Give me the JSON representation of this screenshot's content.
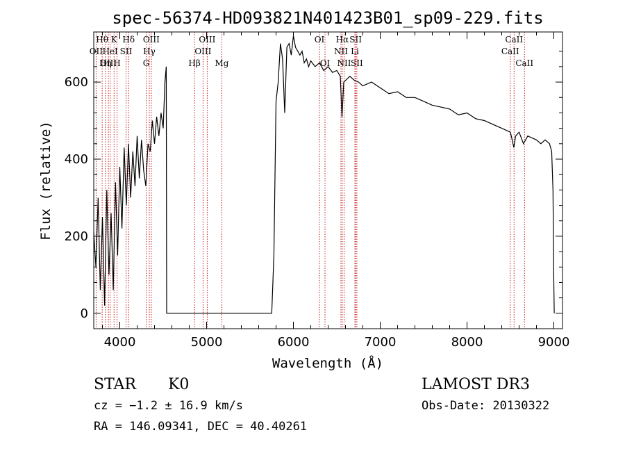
{
  "chart_data": {
    "type": "line",
    "title": "spec-56374-HD093821N401423B01_sp09-229.fits",
    "xlabel": "Wavelength (Å)",
    "ylabel": "Flux (relative)",
    "xlim": [
      3700,
      9100
    ],
    "ylim": [
      -40,
      730
    ],
    "xticks": [
      4000,
      5000,
      6000,
      7000,
      8000,
      9000
    ],
    "yticks": [
      0,
      200,
      400,
      600
    ],
    "grid": false,
    "series": [
      {
        "name": "flux",
        "points": [
          [
            3700,
            210
          ],
          [
            3725,
            120
          ],
          [
            3750,
            300
          ],
          [
            3775,
            60
          ],
          [
            3800,
            250
          ],
          [
            3825,
            20
          ],
          [
            3850,
            320
          ],
          [
            3875,
            100
          ],
          [
            3900,
            260
          ],
          [
            3925,
            60
          ],
          [
            3950,
            340
          ],
          [
            3975,
            150
          ],
          [
            4000,
            380
          ],
          [
            4025,
            220
          ],
          [
            4050,
            430
          ],
          [
            4075,
            280
          ],
          [
            4100,
            440
          ],
          [
            4125,
            300
          ],
          [
            4150,
            420
          ],
          [
            4175,
            330
          ],
          [
            4200,
            460
          ],
          [
            4225,
            350
          ],
          [
            4250,
            450
          ],
          [
            4275,
            370
          ],
          [
            4300,
            330
          ],
          [
            4325,
            440
          ],
          [
            4350,
            420
          ],
          [
            4375,
            500
          ],
          [
            4400,
            440
          ],
          [
            4425,
            510
          ],
          [
            4450,
            460
          ],
          [
            4475,
            520
          ],
          [
            4500,
            480
          ],
          [
            4520,
            600
          ],
          [
            4535,
            640
          ],
          [
            4540,
            0
          ],
          [
            5750,
            0
          ],
          [
            5775,
            150
          ],
          [
            5800,
            550
          ],
          [
            5825,
            600
          ],
          [
            5850,
            700
          ],
          [
            5875,
            660
          ],
          [
            5900,
            520
          ],
          [
            5925,
            690
          ],
          [
            5950,
            700
          ],
          [
            5975,
            670
          ],
          [
            6000,
            720
          ],
          [
            6025,
            690
          ],
          [
            6050,
            680
          ],
          [
            6075,
            670
          ],
          [
            6100,
            680
          ],
          [
            6125,
            650
          ],
          [
            6150,
            660
          ],
          [
            6175,
            640
          ],
          [
            6200,
            655
          ],
          [
            6250,
            640
          ],
          [
            6300,
            650
          ],
          [
            6350,
            630
          ],
          [
            6400,
            640
          ],
          [
            6450,
            625
          ],
          [
            6500,
            630
          ],
          [
            6540,
            615
          ],
          [
            6560,
            510
          ],
          [
            6580,
            600
          ],
          [
            6650,
            615
          ],
          [
            6700,
            605
          ],
          [
            6750,
            600
          ],
          [
            6800,
            590
          ],
          [
            6900,
            600
          ],
          [
            7000,
            585
          ],
          [
            7100,
            570
          ],
          [
            7200,
            575
          ],
          [
            7300,
            560
          ],
          [
            7400,
            560
          ],
          [
            7500,
            550
          ],
          [
            7600,
            540
          ],
          [
            7700,
            535
          ],
          [
            7800,
            530
          ],
          [
            7900,
            515
          ],
          [
            8000,
            520
          ],
          [
            8100,
            505
          ],
          [
            8200,
            500
          ],
          [
            8300,
            490
          ],
          [
            8400,
            480
          ],
          [
            8500,
            470
          ],
          [
            8540,
            430
          ],
          [
            8560,
            460
          ],
          [
            8600,
            470
          ],
          [
            8650,
            440
          ],
          [
            8700,
            460
          ],
          [
            8800,
            450
          ],
          [
            8850,
            440
          ],
          [
            8900,
            450
          ],
          [
            8950,
            440
          ],
          [
            8975,
            420
          ],
          [
            8990,
            320
          ],
          [
            9000,
            80
          ],
          [
            9005,
            0
          ]
        ]
      }
    ],
    "spectral_lines": [
      {
        "label": "Hθ",
        "wavelength": 3797,
        "row": 1
      },
      {
        "label": "OII",
        "wavelength": 3727,
        "row": 2
      },
      {
        "label": "OIII",
        "wavelength": 3869,
        "row": 3
      },
      {
        "label": "K",
        "wavelength": 3934,
        "row": 1
      },
      {
        "label": "H",
        "wavelength": 3968,
        "row": 3
      },
      {
        "label": "HeI",
        "wavelength": 3889,
        "row": 2
      },
      {
        "label": "Hη",
        "wavelength": 3835,
        "row": 3
      },
      {
        "label": "Hδ",
        "wavelength": 4102,
        "row": 1
      },
      {
        "label": "SII",
        "wavelength": 4072,
        "row": 2
      },
      {
        "label": "OIII",
        "wavelength": 4363,
        "row": 1
      },
      {
        "label": "Hγ",
        "wavelength": 4340,
        "row": 2
      },
      {
        "label": "G",
        "wavelength": 4304,
        "row": 3
      },
      {
        "label": "OIII",
        "wavelength": 5007,
        "row": 1
      },
      {
        "label": "OIII",
        "wavelength": 4959,
        "row": 2
      },
      {
        "label": "Hβ",
        "wavelength": 4861,
        "row": 3
      },
      {
        "label": "Mg",
        "wavelength": 5175,
        "row": 3
      },
      {
        "label": "OI",
        "wavelength": 6300,
        "row": 1
      },
      {
        "label": "OI",
        "wavelength": 6364,
        "row": 3
      },
      {
        "label": "Hα",
        "wavelength": 6563,
        "row": 1
      },
      {
        "label": "NII",
        "wavelength": 6548,
        "row": 2
      },
      {
        "label": "NII",
        "wavelength": 6584,
        "row": 3
      },
      {
        "label": "SII",
        "wavelength": 6717,
        "row": 1
      },
      {
        "label": "Li",
        "wavelength": 6708,
        "row": 2
      },
      {
        "label": "SII",
        "wavelength": 6731,
        "row": 3
      },
      {
        "label": "CaII",
        "wavelength": 8542,
        "row": 1
      },
      {
        "label": "CaII",
        "wavelength": 8498,
        "row": 2
      },
      {
        "label": "CaII",
        "wavelength": 8662,
        "row": 3
      }
    ]
  },
  "info": {
    "object_class": "STAR",
    "subclass": "K0",
    "survey": "LAMOST DR3",
    "redshift": "cz = −1.2 ± 16.9 km/s",
    "obs_date": "Obs-Date: 20130322",
    "coords": "RA = 146.09341, DEC =  40.40261"
  },
  "colors": {
    "line": "#000000",
    "marker": "#c00000"
  }
}
